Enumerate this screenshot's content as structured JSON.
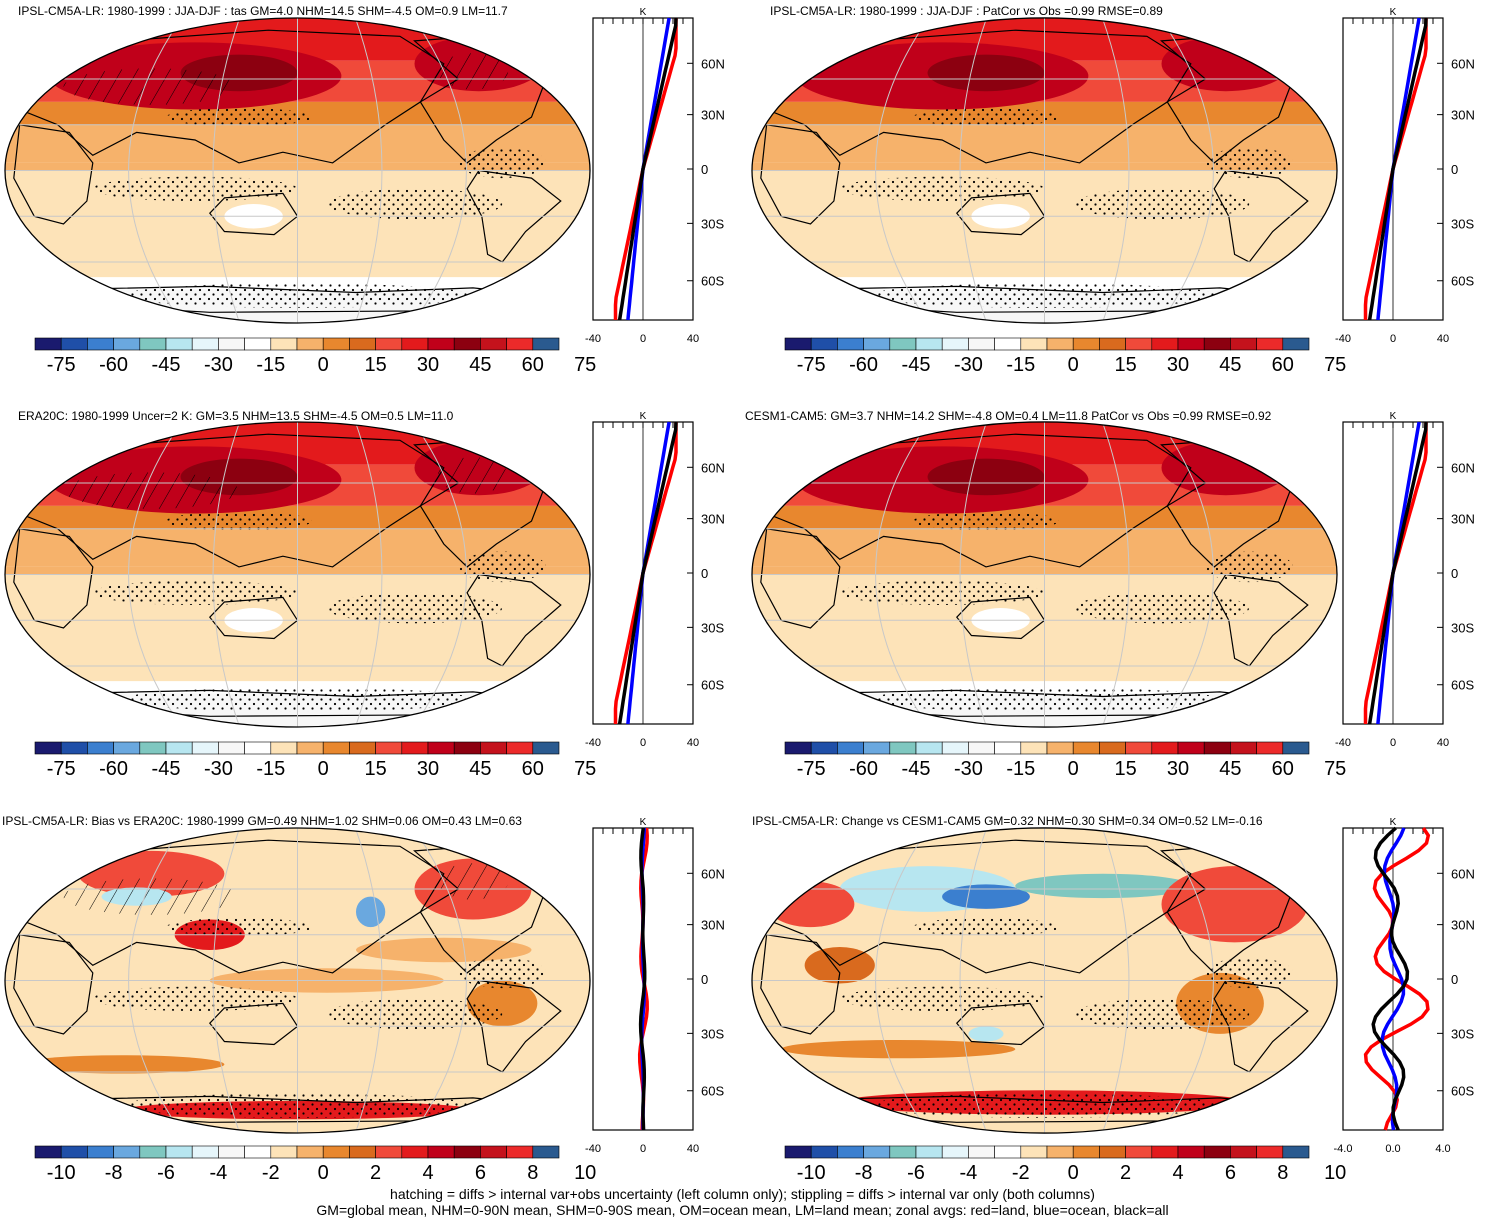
{
  "panels": [
    {
      "id": "ipsl-clim",
      "title": "IPSL-CM5A-LR: 1980-1999 : JJA-DJF : tas GM=4.0 NHM=14.5 SHM=-4.5 OM=0.9 LM=11.7",
      "colorbar_labels": [
        "-75",
        "-60",
        "-45",
        "-30",
        "-15",
        "0",
        "15",
        "30",
        "45",
        "60",
        "75"
      ],
      "zonal_x_ticks": [
        "-40",
        "0",
        "40"
      ],
      "zonal_unit": "K",
      "zonal_lat_ticks": [
        "60N",
        "30N",
        "0",
        "30S",
        "60S"
      ],
      "field": "clim"
    },
    {
      "id": "ipsl-patcor",
      "title": "IPSL-CM5A-LR: 1980-1999 : JJA-DJF : PatCor vs Obs =0.99 RMSE=0.89",
      "colorbar_labels": [
        "-75",
        "-60",
        "-45",
        "-30",
        "-15",
        "0",
        "15",
        "30",
        "45",
        "60",
        "75"
      ],
      "zonal_x_ticks": [
        "-40",
        "0",
        "40"
      ],
      "zonal_unit": "K",
      "zonal_lat_ticks": [
        "60N",
        "30N",
        "0",
        "30S",
        "60S"
      ],
      "field": "clim"
    },
    {
      "id": "era20c",
      "title": "ERA20C: 1980-1999 Uncer=2 K: GM=3.5 NHM=13.5 SHM=-4.5 OM=0.5 LM=11.0",
      "colorbar_labels": [
        "-75",
        "-60",
        "-45",
        "-30",
        "-15",
        "0",
        "15",
        "30",
        "45",
        "60",
        "75"
      ],
      "zonal_x_ticks": [
        "-40",
        "0",
        "40"
      ],
      "zonal_unit": "K",
      "zonal_lat_ticks": [
        "60N",
        "30N",
        "0",
        "30S",
        "60S"
      ],
      "field": "clim"
    },
    {
      "id": "cesm",
      "title": "CESM1-CAM5: GM=3.7 NHM=14.2 SHM=-4.8 OM=0.4 LM=11.8 PatCor vs Obs =0.99 RMSE=0.92",
      "colorbar_labels": [
        "-75",
        "-60",
        "-45",
        "-30",
        "-15",
        "0",
        "15",
        "30",
        "45",
        "60",
        "75"
      ],
      "zonal_x_ticks": [
        "-40",
        "0",
        "40"
      ],
      "zonal_unit": "K",
      "zonal_lat_ticks": [
        "60N",
        "30N",
        "0",
        "30S",
        "60S"
      ],
      "field": "clim"
    },
    {
      "id": "bias",
      "title": "IPSL-CM5A-LR: Bias vs ERA20C: 1980-1999 GM=0.49 NHM=1.02 SHM=0.06 OM=0.43 LM=0.63",
      "colorbar_labels": [
        "-10",
        "-8",
        "-6",
        "-4",
        "-2",
        "0",
        "2",
        "4",
        "6",
        "8",
        "10"
      ],
      "zonal_x_ticks": [
        "-40",
        "0",
        "40"
      ],
      "zonal_unit": "K",
      "zonal_lat_ticks": [
        "60N",
        "30N",
        "0",
        "30S",
        "60S"
      ],
      "field": "bias"
    },
    {
      "id": "change",
      "title": "IPSL-CM5A-LR: Change vs CESM1-CAM5 GM=0.32 NHM=0.30 SHM=0.34 OM=0.52 LM=-0.16",
      "colorbar_labels": [
        "-10",
        "-8",
        "-6",
        "-4",
        "-2",
        "0",
        "2",
        "4",
        "6",
        "8",
        "10"
      ],
      "zonal_x_ticks": [
        "-4.0",
        "0.0",
        "4.0"
      ],
      "zonal_unit": "K",
      "zonal_lat_ticks": [
        "60N",
        "30N",
        "0",
        "30S",
        "60S"
      ],
      "field": "change"
    }
  ],
  "footnote": {
    "line1": "hatching = diffs > internal var+obs uncertainty (left column only); stippling = diffs > internal var only (both columns)",
    "line2": "GM=global mean, NHM=0-90N mean, SHM=0-90S mean, OM=ocean mean, LM=land mean; zonal avgs: red=land, blue=ocean, black=all"
  },
  "colors": {
    "palette": [
      "#1a1a6e",
      "#1f4fa8",
      "#3b7fcf",
      "#6aa8df",
      "#7fc7c0",
      "#b7e6f0",
      "#e6f6fb",
      "#f7f7f7",
      "#ffffff",
      "#fde3b8",
      "#f6b26b",
      "#e8872e",
      "#d96a1e",
      "#f04a3a",
      "#e31a1c",
      "#c0001a",
      "#8c0010",
      "#c4121c",
      "#ec2a2a",
      "#2a5a8f"
    ],
    "land_zonal": "#ff0000",
    "ocean_zonal": "#0000ff",
    "all_zonal": "#000000",
    "grid": "#c8c8c8",
    "coast": "#000000"
  }
}
